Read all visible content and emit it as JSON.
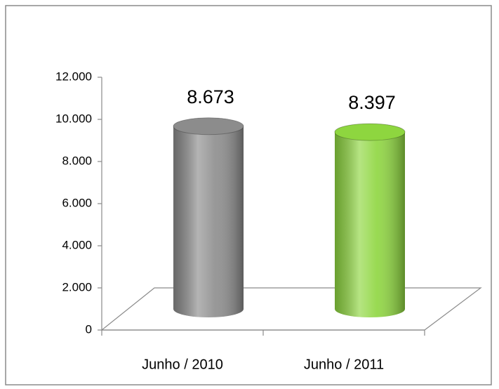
{
  "chart_data": {
    "type": "bar3d",
    "categories": [
      "Junho / 2010",
      "Junho / 2011"
    ],
    "values": [
      8673,
      8397
    ],
    "value_labels": [
      "8.673",
      "8.397"
    ],
    "colors": [
      "#8c8c8c",
      "#8ed63f"
    ],
    "ylim": [
      0,
      12000
    ],
    "yticks": [
      0,
      {
        "value": 2000,
        "label": "2.000"
      },
      {
        "value": 4000,
        "label": "4.000"
      },
      {
        "value": 6000,
        "label": "6.000"
      },
      {
        "value": 8000,
        "label": "8.000"
      },
      {
        "value": 10000,
        "label": "10.000"
      },
      {
        "value": 12000,
        "label": "12.000"
      }
    ]
  }
}
